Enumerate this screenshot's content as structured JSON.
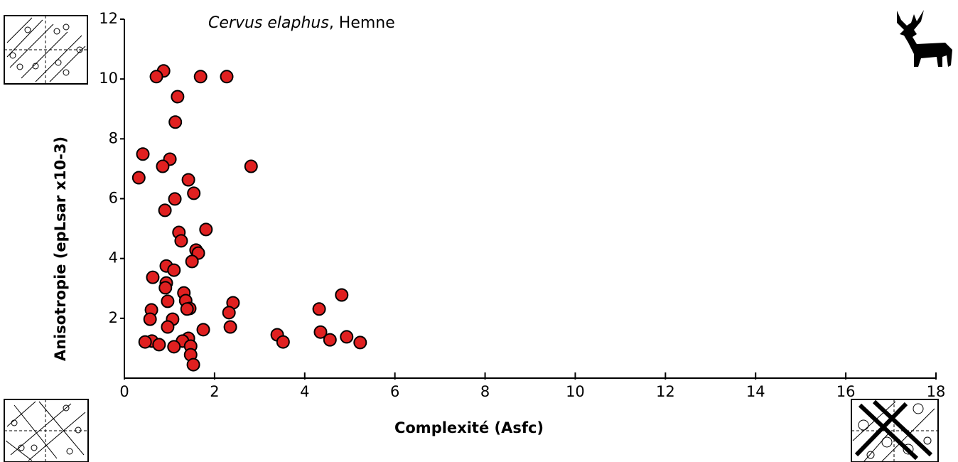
{
  "chart_data": {
    "type": "scatter",
    "title": {
      "italic": "Cervus elaphus",
      "rest": ", Hemne"
    },
    "x_label": "Complexité (Asfc)",
    "y_label": "Anisotropie (epLsar x10-3)",
    "color": "#e02020",
    "xlim": [
      0,
      18
    ],
    "xticks": [
      0,
      2,
      4,
      6,
      8,
      10,
      12,
      14,
      16,
      18
    ],
    "ylim": [
      0,
      12
    ],
    "yticks": [
      2,
      4,
      6,
      8,
      10,
      12
    ],
    "x": [
      0.87,
      0.71,
      1.69,
      2.27,
      1.18,
      1.13,
      0.41,
      1.01,
      0.85,
      2.81,
      0.32,
      1.42,
      1.54,
      1.12,
      0.9,
      1.81,
      1.21,
      1.26,
      1.59,
      1.64,
      1.5,
      0.93,
      1.1,
      0.63,
      0.93,
      0.91,
      1.32,
      4.82,
      1.36,
      0.96,
      2.41,
      1.45,
      1.39,
      0.6,
      4.32,
      2.32,
      1.07,
      0.57,
      0.96,
      2.35,
      1.75,
      4.35,
      3.39,
      4.93,
      1.42,
      4.56,
      1.29,
      0.61,
      0.46,
      3.52,
      5.23,
      0.77,
      1.47,
      1.1,
      1.47,
      1.53
    ],
    "values": [
      10.27,
      10.08,
      10.08,
      10.08,
      9.41,
      8.56,
      7.49,
      7.32,
      7.08,
      7.08,
      6.7,
      6.63,
      6.18,
      5.99,
      5.61,
      4.97,
      4.87,
      4.59,
      4.28,
      4.18,
      3.9,
      3.75,
      3.61,
      3.37,
      3.18,
      3.02,
      2.85,
      2.78,
      2.59,
      2.57,
      2.52,
      2.33,
      2.31,
      2.28,
      2.31,
      2.19,
      1.97,
      1.97,
      1.71,
      1.71,
      1.62,
      1.54,
      1.45,
      1.38,
      1.33,
      1.28,
      1.24,
      1.24,
      1.21,
      1.21,
      1.19,
      1.12,
      1.07,
      1.05,
      0.78,
      0.45
    ]
  }
}
